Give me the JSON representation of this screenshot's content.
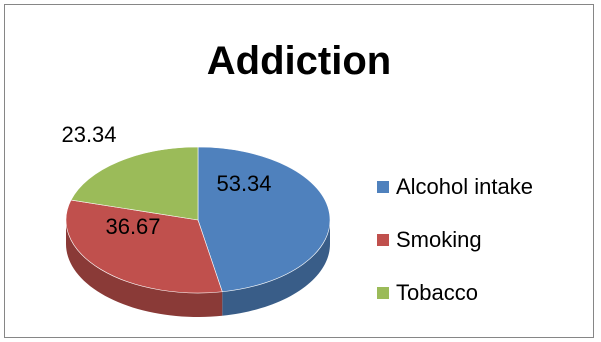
{
  "chart_data": {
    "type": "pie",
    "style": "3d",
    "title": "Addiction",
    "categories": [
      "Alcohol intake",
      "Smoking",
      "Tobacco"
    ],
    "values": [
      53.34,
      36.67,
      23.34
    ],
    "data_labels": [
      "53.34",
      "36.67",
      "23.34"
    ],
    "colors": [
      "#4F81BD",
      "#C0504D",
      "#9BBB59"
    ],
    "legend_position": "right"
  }
}
